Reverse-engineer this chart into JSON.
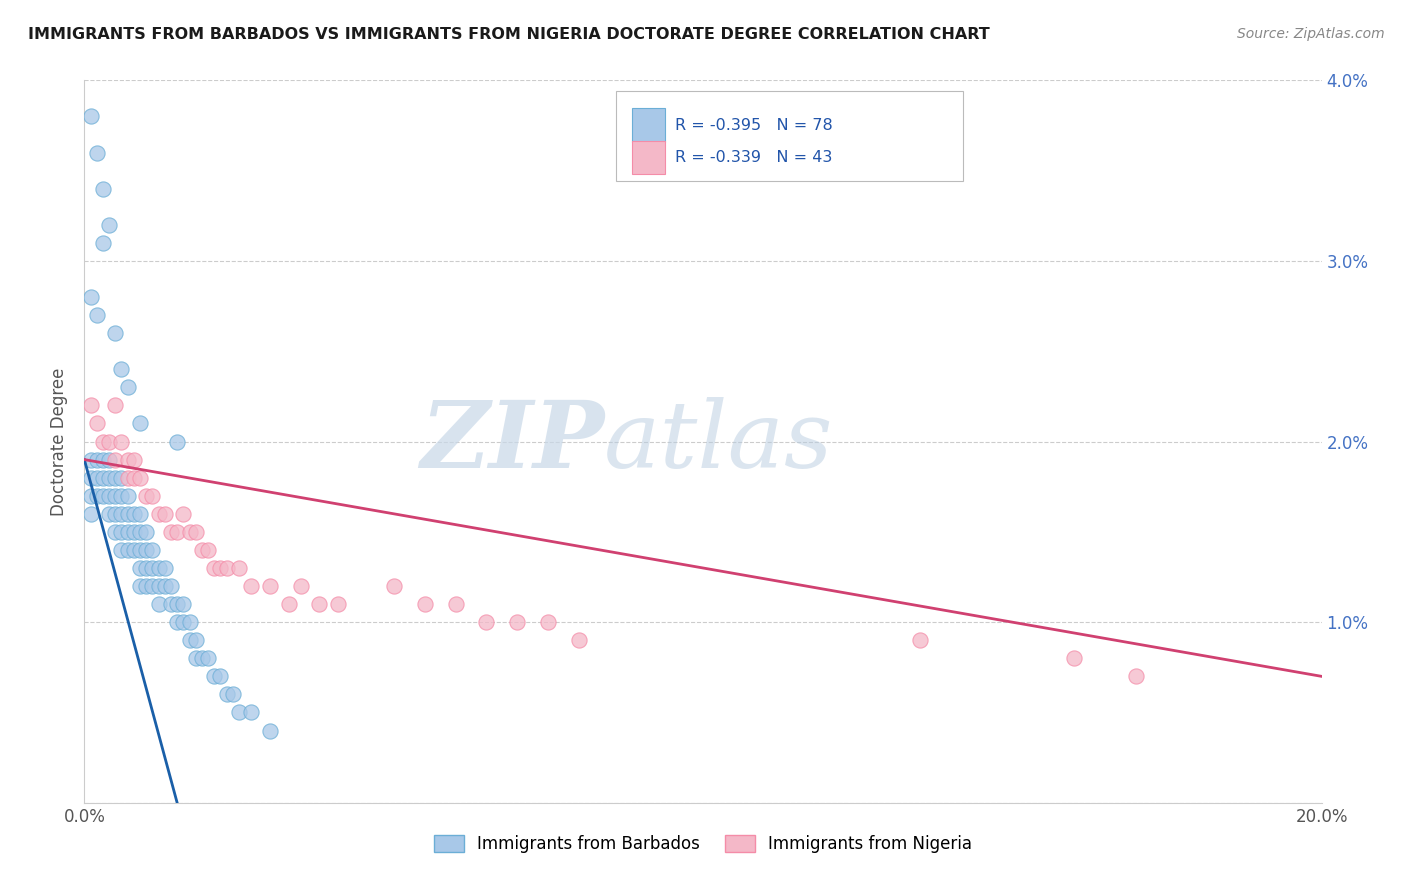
{
  "title": "IMMIGRANTS FROM BARBADOS VS IMMIGRANTS FROM NIGERIA DOCTORATE DEGREE CORRELATION CHART",
  "source_text": "Source: ZipAtlas.com",
  "ylabel": "Doctorate Degree",
  "xlim": [
    0.0,
    0.2
  ],
  "ylim": [
    0.0,
    0.04
  ],
  "xticks": [
    0.0,
    0.05,
    0.1,
    0.15,
    0.2
  ],
  "xtick_labels": [
    "0.0%",
    "",
    "",
    "",
    "20.0%"
  ],
  "yticks": [
    0.0,
    0.01,
    0.02,
    0.03,
    0.04
  ],
  "ytick_labels_left": [
    "",
    "",
    "",
    "",
    ""
  ],
  "ytick_labels_right": [
    "",
    "1.0%",
    "2.0%",
    "3.0%",
    "4.0%"
  ],
  "barbados_color": "#a8c8e8",
  "barbados_edge_color": "#6baed6",
  "nigeria_color": "#f4b8c8",
  "nigeria_edge_color": "#f48ca8",
  "barbados_line_color": "#1a5fa8",
  "nigeria_line_color": "#d04070",
  "barbados_R": -0.395,
  "barbados_N": 78,
  "nigeria_R": -0.339,
  "nigeria_N": 43,
  "legend_label_barbados": "Immigrants from Barbados",
  "legend_label_nigeria": "Immigrants from Nigeria",
  "watermark_zip": "ZIP",
  "watermark_atlas": "atlas",
  "background_color": "#ffffff",
  "barbados_x": [
    0.001,
    0.001,
    0.001,
    0.001,
    0.002,
    0.002,
    0.002,
    0.003,
    0.003,
    0.003,
    0.004,
    0.004,
    0.004,
    0.004,
    0.005,
    0.005,
    0.005,
    0.005,
    0.006,
    0.006,
    0.006,
    0.006,
    0.006,
    0.007,
    0.007,
    0.007,
    0.007,
    0.008,
    0.008,
    0.008,
    0.009,
    0.009,
    0.009,
    0.009,
    0.009,
    0.01,
    0.01,
    0.01,
    0.01,
    0.011,
    0.011,
    0.011,
    0.012,
    0.012,
    0.012,
    0.013,
    0.013,
    0.014,
    0.014,
    0.015,
    0.015,
    0.016,
    0.016,
    0.017,
    0.017,
    0.018,
    0.018,
    0.019,
    0.02,
    0.021,
    0.022,
    0.023,
    0.024,
    0.025,
    0.027,
    0.03,
    0.001,
    0.002,
    0.003,
    0.004,
    0.001,
    0.002,
    0.003,
    0.005,
    0.006,
    0.007,
    0.009,
    0.015
  ],
  "barbados_y": [
    0.019,
    0.018,
    0.017,
    0.016,
    0.019,
    0.018,
    0.017,
    0.019,
    0.018,
    0.017,
    0.019,
    0.018,
    0.017,
    0.016,
    0.018,
    0.017,
    0.016,
    0.015,
    0.018,
    0.017,
    0.016,
    0.015,
    0.014,
    0.017,
    0.016,
    0.015,
    0.014,
    0.016,
    0.015,
    0.014,
    0.016,
    0.015,
    0.014,
    0.013,
    0.012,
    0.015,
    0.014,
    0.013,
    0.012,
    0.014,
    0.013,
    0.012,
    0.013,
    0.012,
    0.011,
    0.013,
    0.012,
    0.012,
    0.011,
    0.011,
    0.01,
    0.011,
    0.01,
    0.01,
    0.009,
    0.009,
    0.008,
    0.008,
    0.008,
    0.007,
    0.007,
    0.006,
    0.006,
    0.005,
    0.005,
    0.004,
    0.038,
    0.036,
    0.034,
    0.032,
    0.028,
    0.027,
    0.031,
    0.026,
    0.024,
    0.023,
    0.021,
    0.02
  ],
  "barbados_line_x": [
    0.0,
    0.015
  ],
  "barbados_line_y": [
    0.019,
    0.0
  ],
  "nigeria_x": [
    0.001,
    0.002,
    0.003,
    0.004,
    0.005,
    0.005,
    0.006,
    0.007,
    0.007,
    0.008,
    0.008,
    0.009,
    0.01,
    0.011,
    0.012,
    0.013,
    0.014,
    0.015,
    0.016,
    0.017,
    0.018,
    0.019,
    0.02,
    0.021,
    0.022,
    0.023,
    0.025,
    0.027,
    0.03,
    0.033,
    0.035,
    0.038,
    0.041,
    0.05,
    0.055,
    0.06,
    0.065,
    0.07,
    0.075,
    0.08,
    0.16,
    0.17,
    0.135
  ],
  "nigeria_y": [
    0.022,
    0.021,
    0.02,
    0.02,
    0.022,
    0.019,
    0.02,
    0.019,
    0.018,
    0.019,
    0.018,
    0.018,
    0.017,
    0.017,
    0.016,
    0.016,
    0.015,
    0.015,
    0.016,
    0.015,
    0.015,
    0.014,
    0.014,
    0.013,
    0.013,
    0.013,
    0.013,
    0.012,
    0.012,
    0.011,
    0.012,
    0.011,
    0.011,
    0.012,
    0.011,
    0.011,
    0.01,
    0.01,
    0.01,
    0.009,
    0.008,
    0.007,
    0.009
  ],
  "nigeria_line_x": [
    0.0,
    0.2
  ],
  "nigeria_line_y": [
    0.019,
    0.007
  ]
}
